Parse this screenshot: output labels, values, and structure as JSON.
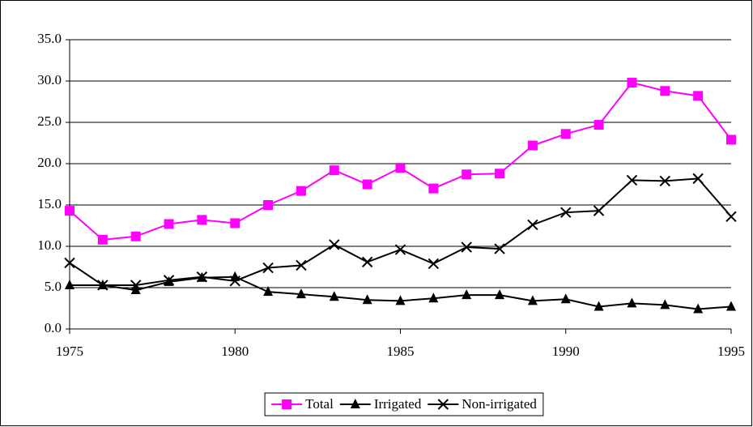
{
  "chart_data": {
    "type": "line",
    "x": [
      1975,
      1976,
      1977,
      1978,
      1979,
      1980,
      1981,
      1982,
      1983,
      1984,
      1985,
      1986,
      1987,
      1988,
      1989,
      1990,
      1991,
      1992,
      1993,
      1994,
      1995
    ],
    "series": [
      {
        "name": "Total",
        "color": "#ff00ff",
        "marker": "square",
        "values": [
          14.3,
          10.8,
          11.2,
          12.7,
          13.2,
          12.8,
          15.0,
          16.7,
          19.2,
          17.5,
          19.5,
          17.0,
          18.7,
          18.8,
          22.2,
          23.6,
          24.7,
          29.8,
          28.8,
          28.2,
          22.9
        ]
      },
      {
        "name": "Irrigated",
        "color": "#000000",
        "marker": "triangle",
        "values": [
          5.3,
          5.3,
          4.7,
          5.7,
          6.2,
          6.3,
          4.5,
          4.2,
          3.9,
          3.5,
          3.4,
          3.7,
          4.1,
          4.1,
          3.4,
          3.6,
          2.7,
          3.1,
          2.9,
          2.4,
          2.7
        ]
      },
      {
        "name": "Non-irrigated",
        "color": "#000000",
        "marker": "x",
        "values": [
          8.0,
          5.3,
          5.3,
          5.9,
          6.3,
          5.8,
          7.4,
          7.7,
          10.2,
          8.1,
          9.6,
          7.9,
          9.9,
          9.7,
          12.6,
          14.1,
          14.3,
          18.0,
          17.9,
          18.2,
          13.6
        ]
      }
    ],
    "xlim": [
      1975,
      1995
    ],
    "xticks": [
      1975,
      1980,
      1985,
      1990,
      1995
    ],
    "ylim": [
      0,
      35
    ],
    "yticks": [
      {
        "value": 0,
        "label": "0.0"
      },
      {
        "value": 5,
        "label": "5.0"
      },
      {
        "value": 10,
        "label": "10.0"
      },
      {
        "value": 15,
        "label": "15.0"
      },
      {
        "value": 20,
        "label": "20.0"
      },
      {
        "value": 25,
        "label": "25.0"
      },
      {
        "value": 30,
        "label": "30.0"
      },
      {
        "value": 35,
        "label": "35.0"
      }
    ],
    "grid": true,
    "legend": "bottom"
  }
}
